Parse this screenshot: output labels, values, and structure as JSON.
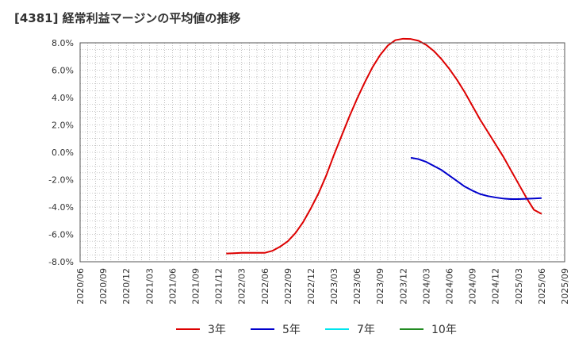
{
  "title": "[4381]  経常利益マージンの平均値の推移",
  "legend": [
    {
      "label": "3年",
      "color": "#dd0000"
    },
    {
      "label": "5年",
      "color": "#0000cc"
    },
    {
      "label": "7年",
      "color": "#00e5ee"
    },
    {
      "label": "10年",
      "color": "#228b22"
    }
  ],
  "chart_data": {
    "type": "line",
    "title": "[4381]  経常利益マージンの平均値の推移",
    "xlabel": "",
    "ylabel": "",
    "ylim": [
      -8.0,
      8.0
    ],
    "y_ticks": [
      "8.0%",
      "6.0%",
      "4.0%",
      "2.0%",
      "0.0%",
      "-2.0%",
      "-4.0%",
      "-6.0%",
      "-8.0%"
    ],
    "x_ticks": [
      "2020/06",
      "2020/09",
      "2020/12",
      "2021/03",
      "2021/06",
      "2021/09",
      "2021/12",
      "2022/03",
      "2022/06",
      "2022/09",
      "2022/12",
      "2023/03",
      "2023/06",
      "2023/09",
      "2023/12",
      "2024/03",
      "2024/06",
      "2024/09",
      "2024/12",
      "2025/03",
      "2025/06",
      "2025/09"
    ],
    "grid": true,
    "legend_position": "bottom",
    "series": [
      {
        "name": "3年",
        "color": "#dd0000",
        "points": [
          [
            "2022/01",
            -7.4
          ],
          [
            "2022/02",
            -7.38
          ],
          [
            "2022/03",
            -7.35
          ],
          [
            "2022/04",
            -7.35
          ],
          [
            "2022/05",
            -7.35
          ],
          [
            "2022/06",
            -7.35
          ],
          [
            "2022/07",
            -7.2
          ],
          [
            "2022/08",
            -6.9
          ],
          [
            "2022/09",
            -6.5
          ],
          [
            "2022/10",
            -5.9
          ],
          [
            "2022/11",
            -5.1
          ],
          [
            "2022/12",
            -4.1
          ],
          [
            "2023/01",
            -3.0
          ],
          [
            "2023/02",
            -1.7
          ],
          [
            "2023/03",
            -0.2
          ],
          [
            "2023/04",
            1.2
          ],
          [
            "2023/05",
            2.6
          ],
          [
            "2023/06",
            3.9
          ],
          [
            "2023/07",
            5.1
          ],
          [
            "2023/08",
            6.2
          ],
          [
            "2023/09",
            7.1
          ],
          [
            "2023/10",
            7.8
          ],
          [
            "2023/11",
            8.2
          ],
          [
            "2023/12",
            8.3
          ],
          [
            "2024/01",
            8.28
          ],
          [
            "2024/02",
            8.15
          ],
          [
            "2024/03",
            7.85
          ],
          [
            "2024/04",
            7.4
          ],
          [
            "2024/05",
            6.8
          ],
          [
            "2024/06",
            6.1
          ],
          [
            "2024/07",
            5.3
          ],
          [
            "2024/08",
            4.4
          ],
          [
            "2024/09",
            3.4
          ],
          [
            "2024/10",
            2.4
          ],
          [
            "2024/11",
            1.5
          ],
          [
            "2024/12",
            0.6
          ],
          [
            "2025/01",
            -0.3
          ],
          [
            "2025/02",
            -1.3
          ],
          [
            "2025/03",
            -2.3
          ],
          [
            "2025/04",
            -3.3
          ],
          [
            "2025/05",
            -4.2
          ],
          [
            "2025/06",
            -4.5
          ]
        ]
      },
      {
        "name": "5年",
        "color": "#0000cc",
        "points": [
          [
            "2024/01",
            -0.4
          ],
          [
            "2024/02",
            -0.5
          ],
          [
            "2024/03",
            -0.7
          ],
          [
            "2024/04",
            -1.0
          ],
          [
            "2024/05",
            -1.3
          ],
          [
            "2024/06",
            -1.7
          ],
          [
            "2024/07",
            -2.1
          ],
          [
            "2024/08",
            -2.5
          ],
          [
            "2024/09",
            -2.8
          ],
          [
            "2024/10",
            -3.05
          ],
          [
            "2024/11",
            -3.2
          ],
          [
            "2024/12",
            -3.3
          ],
          [
            "2025/01",
            -3.38
          ],
          [
            "2025/02",
            -3.42
          ],
          [
            "2025/03",
            -3.42
          ],
          [
            "2025/04",
            -3.4
          ],
          [
            "2025/05",
            -3.38
          ],
          [
            "2025/06",
            -3.35
          ]
        ]
      },
      {
        "name": "7年",
        "color": "#00e5ee",
        "points": []
      },
      {
        "name": "10年",
        "color": "#228b22",
        "points": []
      }
    ]
  }
}
